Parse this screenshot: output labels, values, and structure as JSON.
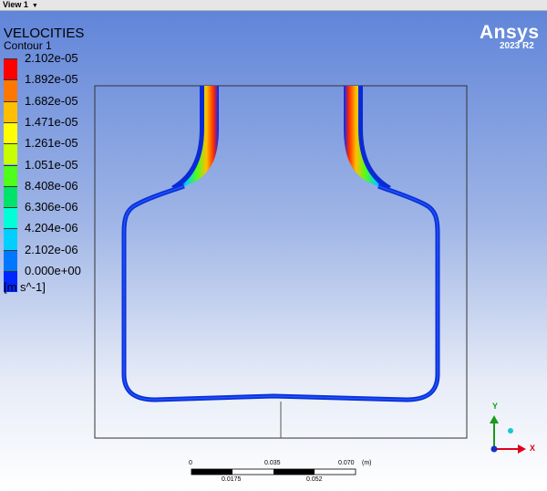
{
  "view": {
    "label": "View 1",
    "menu_icon": "caret-down-icon"
  },
  "legend": {
    "title": "VELOCITIES",
    "subtitle": "Contour 1",
    "ticks": [
      "2.102e-05",
      "1.892e-05",
      "1.682e-05",
      "1.471e-05",
      "1.261e-05",
      "1.051e-05",
      "8.408e-06",
      "6.306e-06",
      "4.204e-06",
      "2.102e-06",
      "0.000e+00"
    ],
    "colors": [
      "#ff0000",
      "#ff7700",
      "#ffbf00",
      "#ffff00",
      "#c7ff00",
      "#4dff1a",
      "#00e36b",
      "#00ffd8",
      "#00cfff",
      "#0077ff",
      "#0026ff"
    ],
    "units": "[m s^-1]"
  },
  "brand": {
    "name": "Ansys",
    "version": "2023 R2"
  },
  "scale": {
    "top": [
      "0",
      "0.035",
      "0.070"
    ],
    "unit": "(m)",
    "bottom": [
      "0.0175",
      "0.052"
    ]
  },
  "triad": {
    "y_label": "Y",
    "x_label": "X"
  }
}
